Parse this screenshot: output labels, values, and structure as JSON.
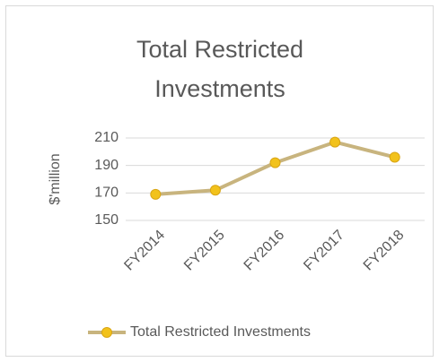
{
  "chart_data": {
    "type": "line",
    "title": "Total Restricted Investments",
    "y_label": "$'million",
    "categories": [
      "FY2014",
      "FY2015",
      "FY2016",
      "FY2017",
      "FY2018"
    ],
    "series": [
      {
        "name": "Total Restricted Investments",
        "color": "#c8b47e",
        "marker_color": "#f2c21b",
        "values": [
          169,
          172,
          192,
          207,
          196
        ]
      }
    ],
    "ylim": [
      150,
      210
    ],
    "yticks": [
      150,
      170,
      190,
      210
    ],
    "grid": true,
    "legend": "bottom"
  }
}
